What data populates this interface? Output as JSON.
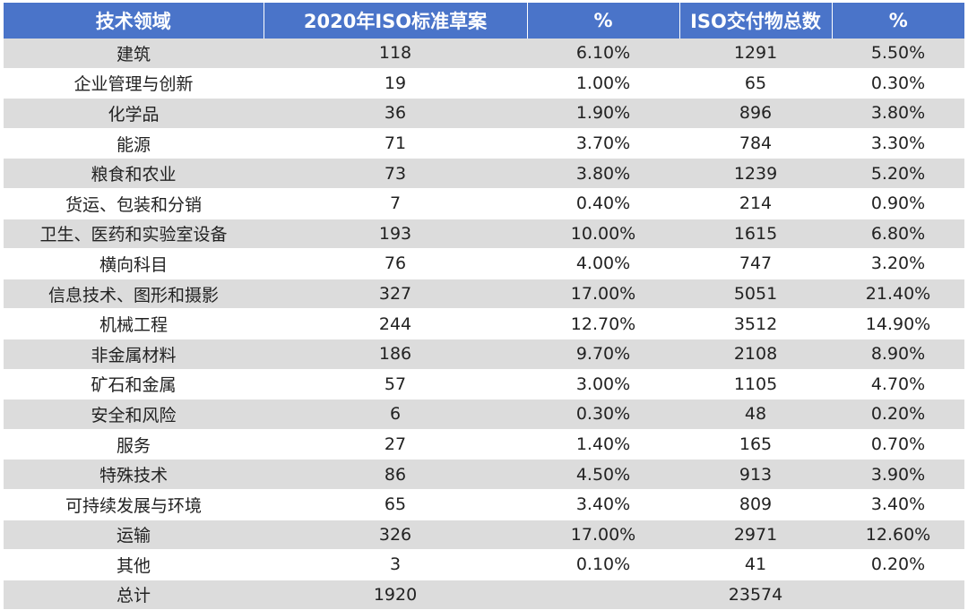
{
  "header": [
    "技术领域",
    "2020年ISO标准草案",
    "%",
    "ISO交付物总数",
    "%"
  ],
  "rows": [
    [
      "建筑",
      "118",
      "6.10%",
      "1291",
      "5.50%"
    ],
    [
      "企业管理与创新",
      "19",
      "1.00%",
      "65",
      "0.30%"
    ],
    [
      "化学品",
      "36",
      "1.90%",
      "896",
      "3.80%"
    ],
    [
      "能源",
      "71",
      "3.70%",
      "784",
      "3.30%"
    ],
    [
      "粮食和农业",
      "73",
      "3.80%",
      "1239",
      "5.20%"
    ],
    [
      "货运、包装和分销",
      "7",
      "0.40%",
      "214",
      "0.90%"
    ],
    [
      "卫生、医药和实验室设备",
      "193",
      "10.00%",
      "1615",
      "6.80%"
    ],
    [
      "横向科目",
      "76",
      "4.00%",
      "747",
      "3.20%"
    ],
    [
      "信息技术、图形和摄影",
      "327",
      "17.00%",
      "5051",
      "21.40%"
    ],
    [
      "机械工程",
      "244",
      "12.70%",
      "3512",
      "14.90%"
    ],
    [
      "非金属材料",
      "186",
      "9.70%",
      "2108",
      "8.90%"
    ],
    [
      "矿石和金属",
      "57",
      "3.00%",
      "1105",
      "4.70%"
    ],
    [
      "安全和风险",
      "6",
      "0.30%",
      "48",
      "0.20%"
    ],
    [
      "服务",
      "27",
      "1.40%",
      "165",
      "0.70%"
    ],
    [
      "特殊技术",
      "86",
      "4.50%",
      "913",
      "3.90%"
    ],
    [
      "可持续发展与环境",
      "65",
      "3.40%",
      "809",
      "3.40%"
    ],
    [
      "运输",
      "326",
      "17.00%",
      "2971",
      "12.60%"
    ],
    [
      "其他",
      "3",
      "0.10%",
      "41",
      "0.20%"
    ]
  ],
  "total": [
    "总计",
    "1920",
    "",
    "23574",
    ""
  ],
  "colors": {
    "header_bg": "#4a74c9",
    "header_text": "#ffffff",
    "stripe": "#dcdcdc"
  }
}
